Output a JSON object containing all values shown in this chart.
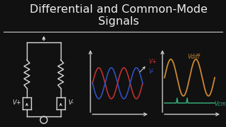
{
  "bg_color": "#111111",
  "title_line1": "Differential and Common-Mode",
  "title_line2": "Signals",
  "title_color": "#eeeeee",
  "title_fontsize": 11.5,
  "divider_color": "#cccccc",
  "circuit_color": "#dddddd",
  "wave_color_plus": "#cc3333",
  "wave_color_minus": "#3355cc",
  "wave_color_diff": "#cc8833",
  "wave_color_cm": "#33aa77",
  "axis_color": "#cccccc",
  "vdiff_label": "Vdiff",
  "vcm_label": "Vcm",
  "vplus_label": "V+",
  "vminus_label": "V-",
  "vplus_src_label": "V+",
  "vminus_src_label": "V-"
}
